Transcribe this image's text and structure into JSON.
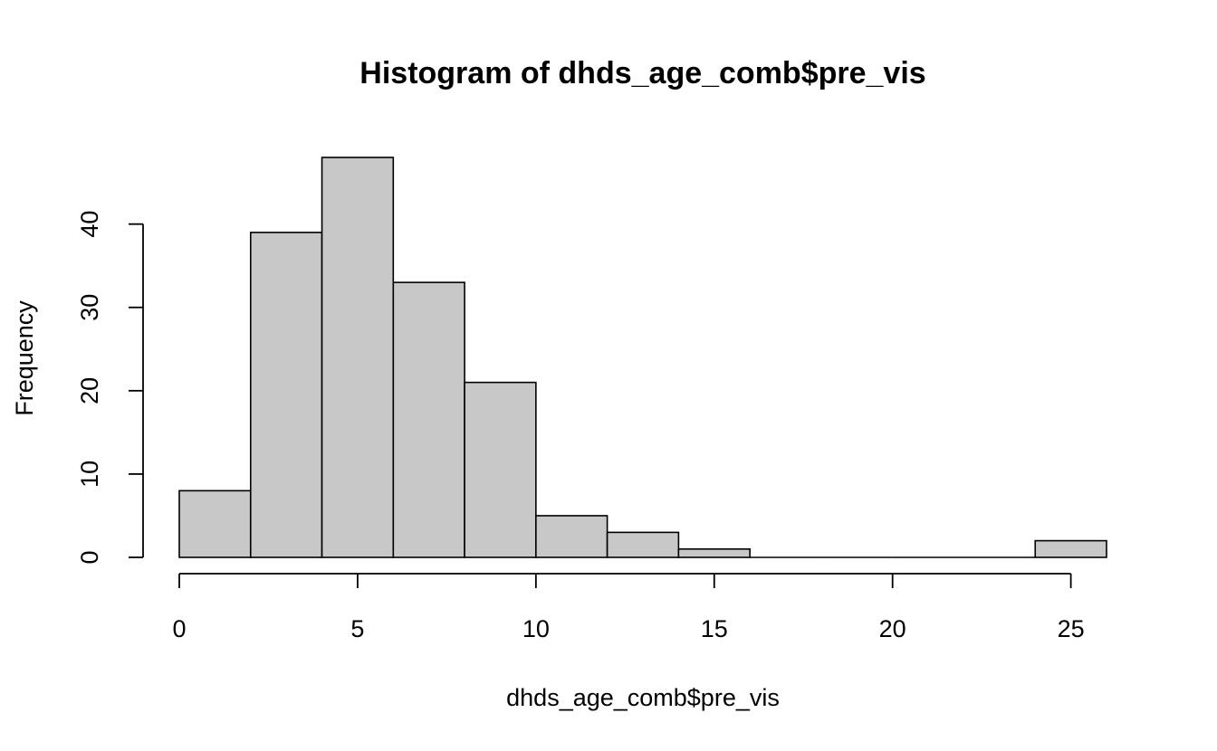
{
  "chart_data": {
    "type": "bar",
    "title": "Histogram of dhds_age_comb$pre_vis",
    "xlabel": "dhds_age_comb$pre_vis",
    "ylabel": "Frequency",
    "bin_edges": [
      0,
      2,
      4,
      6,
      8,
      10,
      12,
      14,
      16,
      18,
      20,
      22,
      24,
      26
    ],
    "values": [
      8,
      39,
      48,
      33,
      21,
      5,
      3,
      1,
      0,
      0,
      0,
      0,
      2
    ],
    "xlim": [
      0,
      26
    ],
    "ylim": [
      0,
      48
    ],
    "xticks": [
      0,
      5,
      10,
      15,
      20,
      25
    ],
    "yticks": [
      0,
      10,
      20,
      30,
      40
    ],
    "bar_color": "#c8c8c8",
    "grid": false,
    "legend": "none"
  }
}
